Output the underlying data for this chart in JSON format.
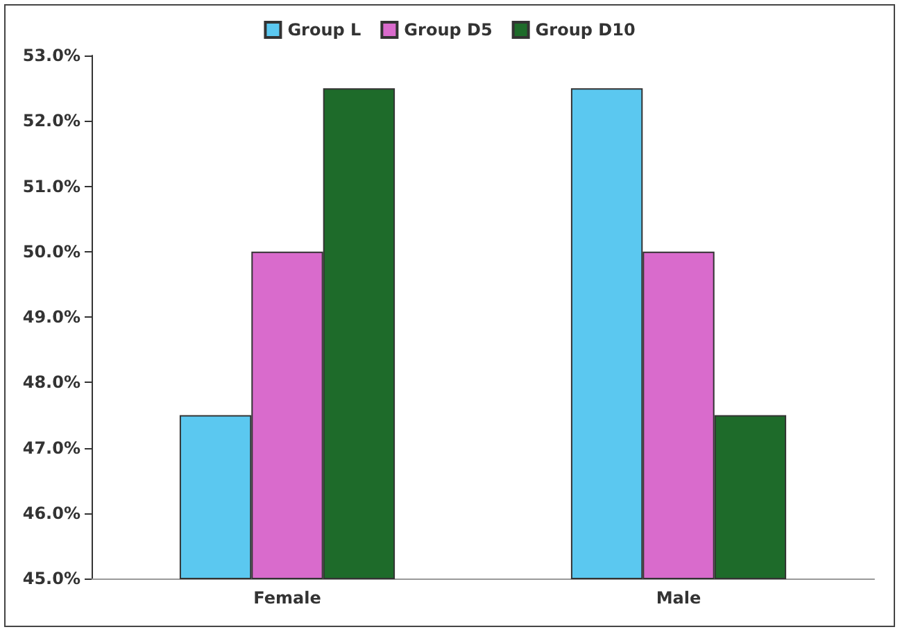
{
  "chart_data": {
    "type": "bar",
    "categories": [
      "Female",
      "Male"
    ],
    "series": [
      {
        "name": "Group L",
        "color": "#5bc8f0",
        "values": [
          47.5,
          52.5
        ]
      },
      {
        "name": "Group D5",
        "color": "#d96bcc",
        "values": [
          50.0,
          50.0
        ]
      },
      {
        "name": "Group D10",
        "color": "#1e6b2a",
        "values": [
          52.5,
          47.5
        ]
      }
    ],
    "ylim": [
      45,
      53
    ],
    "yticks": [
      {
        "value": 45,
        "label": "45.0%"
      },
      {
        "value": 46,
        "label": "46.0%"
      },
      {
        "value": 47,
        "label": "47.0%"
      },
      {
        "value": 48,
        "label": "48.0%"
      },
      {
        "value": 49,
        "label": "49.0%"
      },
      {
        "value": 50,
        "label": "50.0%"
      },
      {
        "value": 51,
        "label": "51.0%"
      },
      {
        "value": 52,
        "label": "52.0%"
      },
      {
        "value": 53,
        "label": "53.0%"
      }
    ],
    "grid": false,
    "legend": "top"
  }
}
